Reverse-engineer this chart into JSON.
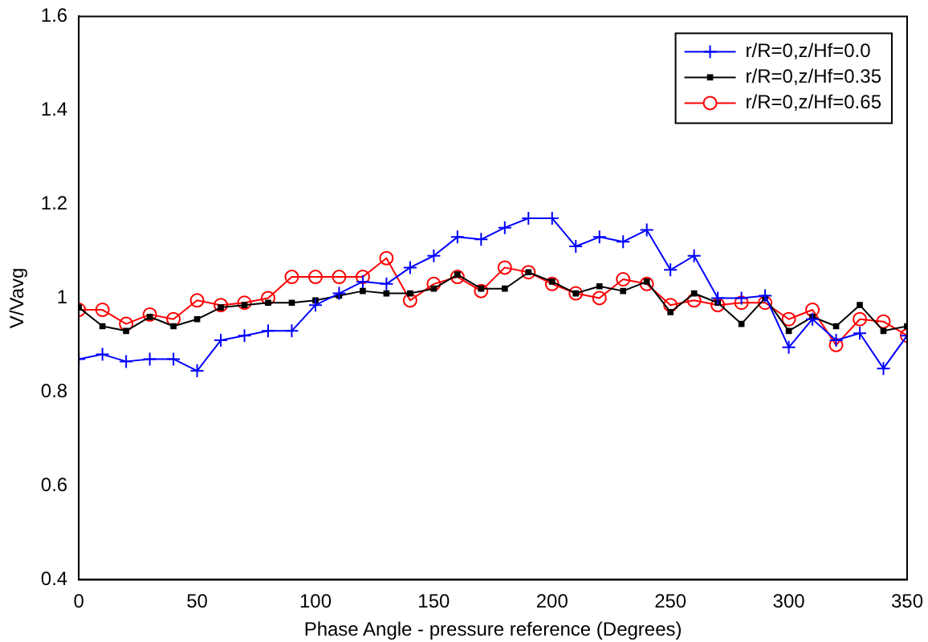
{
  "chart_data": {
    "type": "line",
    "xlabel": "Phase Angle - pressure reference (Degrees)",
    "ylabel": "V/Vavg",
    "x": [
      0,
      10,
      20,
      30,
      40,
      50,
      60,
      70,
      80,
      90,
      100,
      110,
      120,
      130,
      140,
      150,
      160,
      170,
      180,
      190,
      200,
      210,
      220,
      230,
      240,
      250,
      260,
      270,
      280,
      290,
      300,
      310,
      320,
      330,
      340,
      350
    ],
    "series": [
      {
        "name": "r/R=0,z/Hf=0.0",
        "color": "#0000ff",
        "marker": "cross",
        "values": [
          0.87,
          0.88,
          0.865,
          0.87,
          0.87,
          0.845,
          0.91,
          0.92,
          0.93,
          0.93,
          0.985,
          1.01,
          1.035,
          1.03,
          1.065,
          1.09,
          1.13,
          1.125,
          1.15,
          1.17,
          1.17,
          1.11,
          1.13,
          1.12,
          1.145,
          1.06,
          1.09,
          1.0,
          1.0,
          1.005,
          0.895,
          0.955,
          0.91,
          0.925,
          0.85,
          0.92
        ]
      },
      {
        "name": "r/R=0,z/Hf=0.35",
        "color": "#000000",
        "marker": "square",
        "values": [
          0.98,
          0.94,
          0.93,
          0.96,
          0.94,
          0.955,
          0.98,
          0.985,
          0.99,
          0.99,
          0.995,
          1.005,
          1.015,
          1.01,
          1.01,
          1.02,
          1.05,
          1.02,
          1.02,
          1.055,
          1.035,
          1.01,
          1.025,
          1.015,
          1.035,
          0.97,
          1.01,
          0.99,
          0.945,
          1.0,
          0.93,
          0.96,
          0.94,
          0.985,
          0.93,
          0.94
        ]
      },
      {
        "name": "r/R=0,z/Hf=0.65",
        "color": "#ff0000",
        "marker": "circle",
        "values": [
          0.975,
          0.975,
          0.945,
          0.965,
          0.955,
          0.995,
          0.985,
          0.99,
          1.0,
          1.045,
          1.045,
          1.045,
          1.045,
          1.085,
          0.995,
          1.03,
          1.045,
          1.015,
          1.065,
          1.055,
          1.03,
          1.01,
          1.0,
          1.04,
          1.03,
          0.985,
          0.995,
          0.985,
          0.99,
          0.99,
          0.955,
          0.975,
          0.9,
          0.955,
          0.95,
          0.92
        ]
      }
    ],
    "xlim": [
      0,
      350
    ],
    "xticks": [
      0,
      50,
      100,
      150,
      200,
      250,
      300,
      350
    ],
    "ylim": [
      0.4,
      1.6
    ],
    "yticks": [
      0.4,
      0.6,
      0.8,
      1,
      1.2,
      1.4,
      1.6
    ],
    "grid": false,
    "legend": "top right",
    "line_style": "solid"
  }
}
